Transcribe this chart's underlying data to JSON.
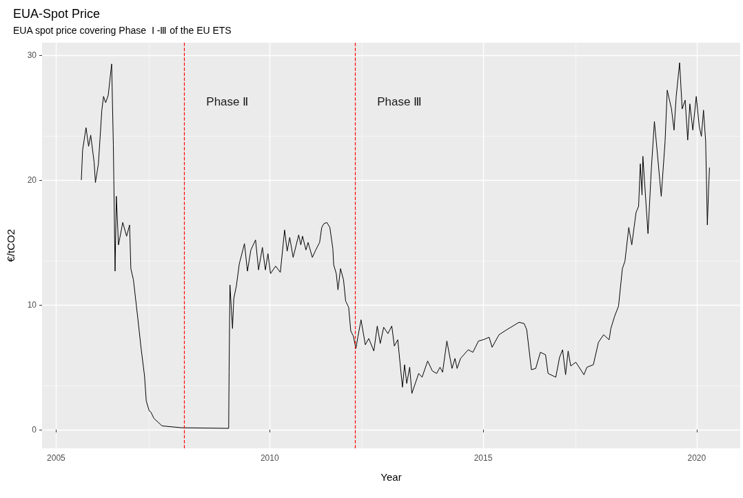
{
  "chart_data": {
    "type": "line",
    "title": "EUA-Spot Price",
    "subtitle": "EUA spot price covering Phase  Ⅰ -Ⅲ of the EU ETS",
    "xlabel": "Year",
    "ylabel": "€/tCO2",
    "x": [
      2005.59,
      2005.62,
      2005.7,
      2005.76,
      2005.81,
      2005.89,
      2005.92,
      2005.99,
      2006.07,
      2006.11,
      2006.16,
      2006.22,
      2006.3,
      2006.34,
      2006.38,
      2006.41,
      2006.46,
      2006.56,
      2006.65,
      2006.72,
      2006.75,
      2006.81,
      2006.91,
      2006.99,
      2007.07,
      2007.11,
      2007.18,
      2007.22,
      2007.29,
      2007.48,
      2007.93,
      2009.04,
      2009.05,
      2009.07,
      2009.13,
      2009.16,
      2009.22,
      2009.29,
      2009.41,
      2009.48,
      2009.56,
      2009.67,
      2009.74,
      2009.83,
      2009.9,
      2009.96,
      2010.02,
      2010.14,
      2010.25,
      2010.35,
      2010.41,
      2010.47,
      2010.55,
      2010.68,
      2010.73,
      2010.77,
      2010.85,
      2010.9,
      2011.0,
      2011.08,
      2011.17,
      2011.22,
      2011.27,
      2011.34,
      2011.41,
      2011.48,
      2011.5,
      2011.56,
      2011.6,
      2011.66,
      2011.73,
      2011.78,
      2011.85,
      2011.9,
      2011.96,
      2012.02,
      2012.07,
      2012.14,
      2012.24,
      2012.32,
      2012.44,
      2012.52,
      2012.59,
      2012.67,
      2012.77,
      2012.86,
      2012.92,
      2013.0,
      2013.11,
      2013.16,
      2013.21,
      2013.28,
      2013.33,
      2013.41,
      2013.49,
      2013.57,
      2013.7,
      2013.81,
      2013.91,
      2013.99,
      2014.05,
      2014.15,
      2014.27,
      2014.34,
      2014.39,
      2014.47,
      2014.65,
      2014.76,
      2014.89,
      2015.0,
      2015.14,
      2015.21,
      2015.37,
      2015.55,
      2015.84,
      2015.96,
      2016.02,
      2016.13,
      2016.23,
      2016.34,
      2016.46,
      2016.52,
      2016.7,
      2016.79,
      2016.86,
      2016.93,
      2016.99,
      2017.05,
      2017.17,
      2017.36,
      2017.43,
      2017.58,
      2017.7,
      2017.82,
      2017.95,
      2017.99,
      2018.08,
      2018.17,
      2018.26,
      2018.32,
      2018.41,
      2018.48,
      2018.58,
      2018.64,
      2018.68,
      2018.72,
      2018.74,
      2018.86,
      2018.94,
      2019.01,
      2019.08,
      2019.17,
      2019.26,
      2019.31,
      2019.41,
      2019.47,
      2019.52,
      2019.6,
      2019.66,
      2019.73,
      2019.79,
      2019.84,
      2019.91,
      2019.99,
      2020.06,
      2020.11,
      2020.16,
      2020.21,
      2020.25,
      2020.28,
      2020.3
    ],
    "series": [
      {
        "color": "#000000",
        "values": [
          20.0,
          22.4,
          24.2,
          22.7,
          23.6,
          21.4,
          19.8,
          21.3,
          25.6,
          26.7,
          26.2,
          26.8,
          29.3,
          22.8,
          12.7,
          18.7,
          14.8,
          16.6,
          15.5,
          16.4,
          12.9,
          12.0,
          9.0,
          6.5,
          4.3,
          2.3,
          1.5,
          1.4,
          0.9,
          0.3,
          0.15,
          0.1,
          4.6,
          11.6,
          8.1,
          10.5,
          11.5,
          13.3,
          14.9,
          12.7,
          14.4,
          15.2,
          12.8,
          14.6,
          12.8,
          14.1,
          12.5,
          13.1,
          12.6,
          16.0,
          14.3,
          15.4,
          13.8,
          15.6,
          14.8,
          15.5,
          14.4,
          15.0,
          13.8,
          14.4,
          15.0,
          16.2,
          16.5,
          16.6,
          16.2,
          14.5,
          13.2,
          12.5,
          11.2,
          12.9,
          12.0,
          10.3,
          9.8,
          7.9,
          7.5,
          6.5,
          7.5,
          8.8,
          6.8,
          7.3,
          6.3,
          8.3,
          6.9,
          8.2,
          7.7,
          8.3,
          6.7,
          7.2,
          3.4,
          5.2,
          3.7,
          5.0,
          2.9,
          3.7,
          4.5,
          4.2,
          5.5,
          4.7,
          4.5,
          5.0,
          4.6,
          7.1,
          4.9,
          5.7,
          4.9,
          5.7,
          6.4,
          6.2,
          7.1,
          7.2,
          7.4,
          6.6,
          7.6,
          8.0,
          8.6,
          8.5,
          8.0,
          4.8,
          4.9,
          6.2,
          6.0,
          4.5,
          4.2,
          5.8,
          6.4,
          4.4,
          6.3,
          5.1,
          5.4,
          4.4,
          5.0,
          5.2,
          7.0,
          7.6,
          7.2,
          8.1,
          9.1,
          9.9,
          12.9,
          13.5,
          16.2,
          14.8,
          17.4,
          17.9,
          21.3,
          18.8,
          21.9,
          15.7,
          21.0,
          24.7,
          22.1,
          18.7,
          23.1,
          27.2,
          25.7,
          24.0,
          26.7,
          29.4,
          25.7,
          26.4,
          23.2,
          26.1,
          24.0,
          26.7,
          24.3,
          23.5,
          25.6,
          23.1,
          16.4,
          19.4,
          21.0
        ]
      }
    ],
    "xlim": [
      2004.67,
      2021.02
    ],
    "xticks": [
      2005,
      2010,
      2015,
      2020
    ],
    "ylim": [
      -1.5,
      31
    ],
    "yticks": [
      0,
      10,
      20,
      30
    ],
    "ref_lines": [
      {
        "axis": "x",
        "value": 2008,
        "color": "#ff0000",
        "line_style": "dashed",
        "label": "Phase Ⅱ"
      },
      {
        "axis": "x",
        "value": 2012,
        "color": "#ff0000",
        "line_style": "dashed",
        "label": "Phase Ⅲ"
      }
    ],
    "grid": true,
    "marker": "none",
    "line_style": "solid"
  }
}
